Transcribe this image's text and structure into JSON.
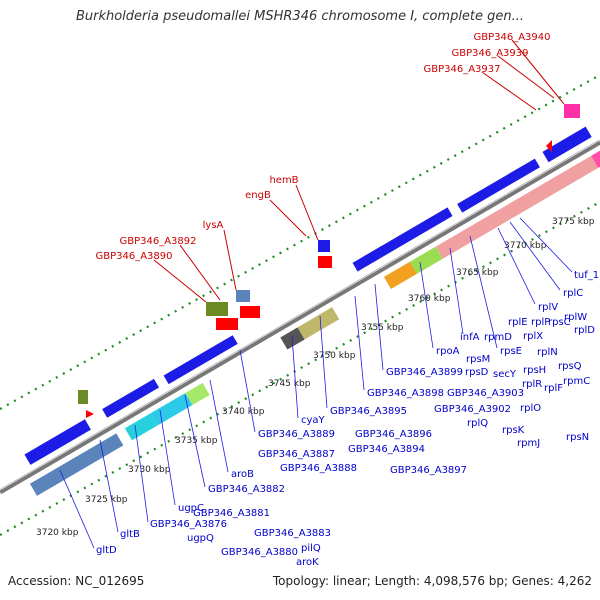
{
  "title": "Burkholderia pseudomallei MSHR346 chromosome I, complete gen...",
  "footer": {
    "accession": "Accession: NC_012695",
    "summary": "Topology: linear; Length: 4,098,576 bp; Genes: 4,262"
  },
  "colors": {
    "gene_label": "#0000cc",
    "highlight_label": "#cc0000",
    "forward_gene": "#1c1ce6",
    "highlight_gene": "#ff0000",
    "axis": "#888888",
    "dots": "#228822"
  },
  "ruler": {
    "unit": "kbp",
    "ticks": [
      "3720 kbp",
      "3725 kbp",
      "3730 kbp",
      "3735 kbp",
      "3740 kbp",
      "3745 kbp",
      "3750 kbp",
      "3755 kbp",
      "3760 kbp",
      "3765 kbp",
      "3770 kbp",
      "3775 kbp"
    ]
  },
  "highlight_labels": [
    "GBP346_A3940",
    "GBP346_A3939",
    "GBP346_A3937",
    "hemB",
    "engB",
    "lysA",
    "GBP346_A3892",
    "GBP346_A3890"
  ],
  "gene_labels": [
    "tuf_1",
    "rplC",
    "rplV",
    "rplW",
    "rpsC",
    "rplD",
    "rplP",
    "rplE",
    "rpmD",
    "rplX",
    "rpsE",
    "rplN",
    "rpsQ",
    "infA",
    "rpsM",
    "rpoA",
    "rpsH",
    "rpmC",
    "secY",
    "rpsD",
    "rplR",
    "rplF",
    "GBP346_A3899",
    "GBP346_A3903",
    "GBP346_A3898",
    "rplO",
    "GBP346_A3902",
    "rpsN",
    "rplQ",
    "rpsK",
    "GBP346_A3895",
    "rpmJ",
    "cyaY",
    "GBP346_A3896",
    "GBP346_A3889",
    "GBP346_A3894",
    "GBP346_A3887",
    "GBP346_A3888",
    "GBP346_A3897",
    "aroB",
    "GBP346_A3882",
    "ugpC",
    "GBP346_A3876",
    "GBP346_A3881",
    "gltB",
    "ugpQ",
    "GBP346_A3883",
    "pilQ",
    "GBP346_A3880",
    "gltD",
    "aroK"
  ]
}
